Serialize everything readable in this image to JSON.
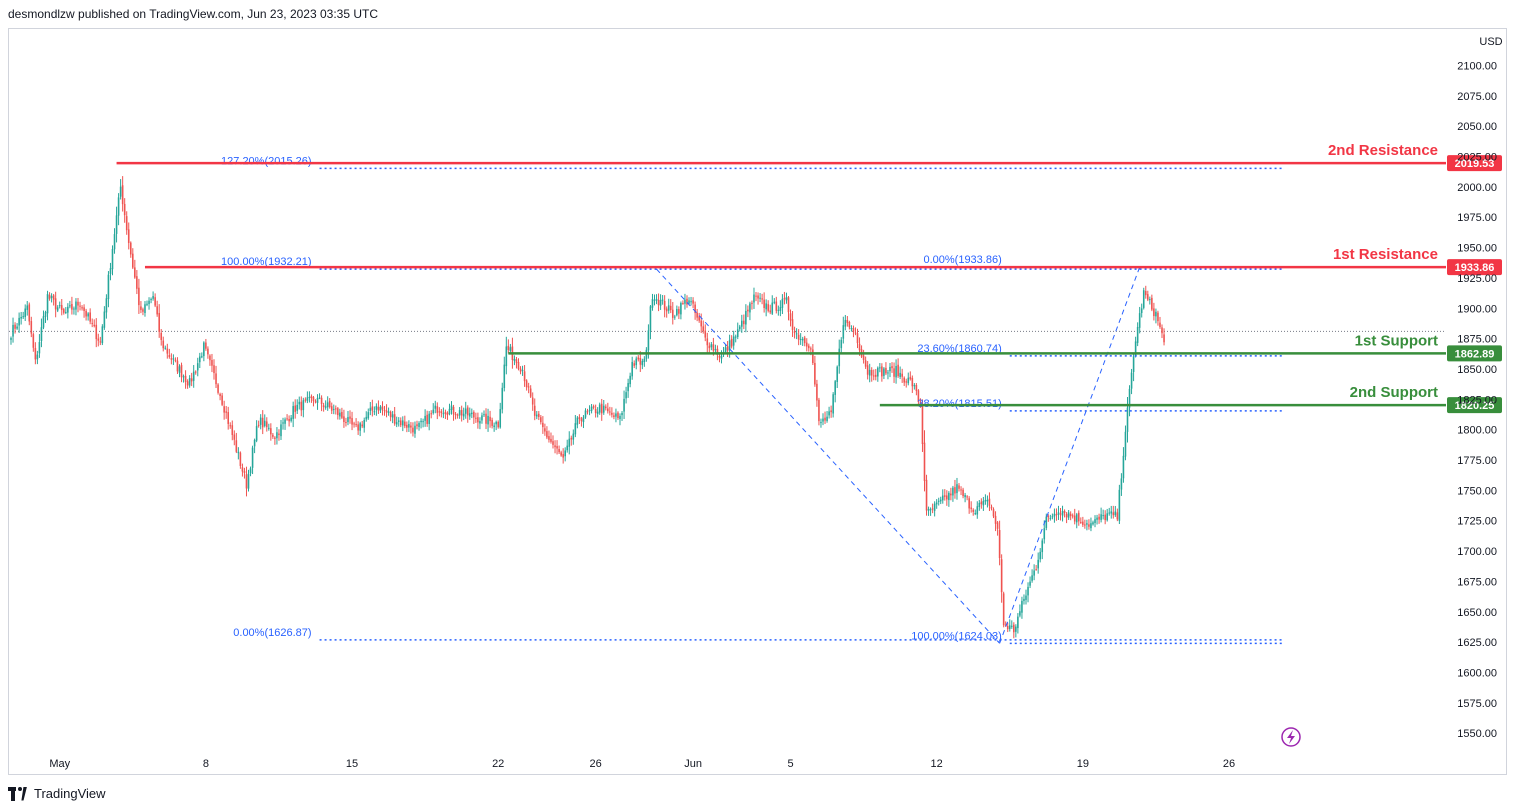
{
  "header": {
    "published": "desmondlzw published on TradingView.com, Jun 23, 2023 03:35 UTC"
  },
  "footer": {
    "brand": "TradingView"
  },
  "chart_data": {
    "type": "candlestick",
    "currency_label": "USD",
    "ylim": [
      1537,
      2130
    ],
    "y_ticks": [
      2100,
      2075,
      2050,
      2025,
      2000,
      1975,
      1950,
      1925,
      1900,
      1875,
      1850,
      1825,
      1800,
      1775,
      1750,
      1725,
      1700,
      1675,
      1650,
      1625,
      1600,
      1575,
      1550
    ],
    "x_ticks": [
      {
        "label": "May",
        "bar": 24
      },
      {
        "label": "8",
        "bar": 96
      },
      {
        "label": "15",
        "bar": 168
      },
      {
        "label": "22",
        "bar": 240
      },
      {
        "label": "26",
        "bar": 288
      },
      {
        "label": "Jun",
        "bar": 336
      },
      {
        "label": "5",
        "bar": 384
      },
      {
        "label": "12",
        "bar": 456
      },
      {
        "label": "19",
        "bar": 528
      },
      {
        "label": "26",
        "bar": 600
      }
    ],
    "bars_total": 640,
    "current_price": 1881,
    "colors": {
      "up": "#26a69a",
      "down": "#ef5350",
      "resistance": "#f23645",
      "support": "#388e3c",
      "fib": "#2962ff"
    },
    "levels": [
      {
        "name": "2nd Resistance",
        "price": 2019.53,
        "label": "2019.53",
        "kind": "resistance",
        "from_bar": 52
      },
      {
        "name": "1st Resistance",
        "price": 1933.86,
        "label": "1933.86",
        "kind": "resistance",
        "from_bar": 66
      },
      {
        "name": "1st Support",
        "price": 1862.89,
        "label": "1862.89",
        "kind": "support",
        "from_bar": 245
      },
      {
        "name": "2nd Support",
        "price": 1820.25,
        "label": "1820.25",
        "kind": "support",
        "from_bar": 428
      }
    ],
    "fib_lines": [
      {
        "label": "127.20%(2015.26)",
        "price": 2015.26,
        "from_bar": 152,
        "to_bar": 626
      },
      {
        "label": "100.00%(1932.21)",
        "price": 1932.21,
        "from_bar": 152,
        "to_bar": 626
      },
      {
        "label": "0.00%(1626.87)",
        "price": 1626.87,
        "from_bar": 152,
        "to_bar": 626
      },
      {
        "label": "0.00%(1933.86)",
        "price": 1933.86,
        "from_bar": 492,
        "to_bar": 626
      },
      {
        "label": "23.60%(1860.74)",
        "price": 1860.74,
        "from_bar": 492,
        "to_bar": 626
      },
      {
        "label": "38.20%(1815.51)",
        "price": 1815.51,
        "from_bar": 492,
        "to_bar": 626
      },
      {
        "label": "100.00%(1624.03)",
        "price": 1624.03,
        "from_bar": 492,
        "to_bar": 626
      }
    ],
    "trend_lines": [
      {
        "from_bar": 318,
        "from_price": 1932.21,
        "to_bar": 487,
        "to_price": 1624.03
      },
      {
        "from_bar": 487,
        "from_price": 1624.03,
        "to_bar": 556,
        "to_price": 1933.86
      }
    ],
    "anchors": [
      {
        "bar": 0,
        "price": 1880
      },
      {
        "bar": 8,
        "price": 1900
      },
      {
        "bar": 12,
        "price": 1855
      },
      {
        "bar": 18,
        "price": 1910
      },
      {
        "bar": 26,
        "price": 1895
      },
      {
        "bar": 34,
        "price": 1905
      },
      {
        "bar": 44,
        "price": 1872
      },
      {
        "bar": 50,
        "price": 1950
      },
      {
        "bar": 54,
        "price": 2000
      },
      {
        "bar": 58,
        "price": 1955
      },
      {
        "bar": 64,
        "price": 1895
      },
      {
        "bar": 70,
        "price": 1910
      },
      {
        "bar": 74,
        "price": 1872
      },
      {
        "bar": 80,
        "price": 1856
      },
      {
        "bar": 88,
        "price": 1838
      },
      {
        "bar": 95,
        "price": 1868
      },
      {
        "bar": 103,
        "price": 1830
      },
      {
        "bar": 110,
        "price": 1790
      },
      {
        "bar": 116,
        "price": 1755
      },
      {
        "bar": 122,
        "price": 1808
      },
      {
        "bar": 130,
        "price": 1795
      },
      {
        "bar": 140,
        "price": 1818
      },
      {
        "bar": 150,
        "price": 1825
      },
      {
        "bar": 160,
        "price": 1815
      },
      {
        "bar": 170,
        "price": 1800
      },
      {
        "bar": 180,
        "price": 1820
      },
      {
        "bar": 190,
        "price": 1808
      },
      {
        "bar": 200,
        "price": 1800
      },
      {
        "bar": 210,
        "price": 1818
      },
      {
        "bar": 220,
        "price": 1815
      },
      {
        "bar": 230,
        "price": 1810
      },
      {
        "bar": 240,
        "price": 1805
      },
      {
        "bar": 244,
        "price": 1868
      },
      {
        "bar": 252,
        "price": 1850
      },
      {
        "bar": 258,
        "price": 1812
      },
      {
        "bar": 264,
        "price": 1795
      },
      {
        "bar": 272,
        "price": 1775
      },
      {
        "bar": 280,
        "price": 1810
      },
      {
        "bar": 290,
        "price": 1818
      },
      {
        "bar": 300,
        "price": 1808
      },
      {
        "bar": 306,
        "price": 1855
      },
      {
        "bar": 312,
        "price": 1855
      },
      {
        "bar": 316,
        "price": 1912
      },
      {
        "bar": 326,
        "price": 1895
      },
      {
        "bar": 334,
        "price": 1908
      },
      {
        "bar": 342,
        "price": 1875
      },
      {
        "bar": 350,
        "price": 1860
      },
      {
        "bar": 358,
        "price": 1880
      },
      {
        "bar": 366,
        "price": 1908
      },
      {
        "bar": 374,
        "price": 1900
      },
      {
        "bar": 382,
        "price": 1905
      },
      {
        "bar": 386,
        "price": 1880
      },
      {
        "bar": 394,
        "price": 1870
      },
      {
        "bar": 398,
        "price": 1805
      },
      {
        "bar": 404,
        "price": 1812
      },
      {
        "bar": 410,
        "price": 1890
      },
      {
        "bar": 416,
        "price": 1880
      },
      {
        "bar": 422,
        "price": 1848
      },
      {
        "bar": 428,
        "price": 1848
      },
      {
        "bar": 436,
        "price": 1848
      },
      {
        "bar": 444,
        "price": 1838
      },
      {
        "bar": 448,
        "price": 1820
      },
      {
        "bar": 451,
        "price": 1730
      },
      {
        "bar": 458,
        "price": 1740
      },
      {
        "bar": 466,
        "price": 1752
      },
      {
        "bar": 474,
        "price": 1735
      },
      {
        "bar": 482,
        "price": 1740
      },
      {
        "bar": 486,
        "price": 1718
      },
      {
        "bar": 489,
        "price": 1640
      },
      {
        "bar": 494,
        "price": 1635
      },
      {
        "bar": 500,
        "price": 1665
      },
      {
        "bar": 505,
        "price": 1688
      },
      {
        "bar": 510,
        "price": 1725
      },
      {
        "bar": 516,
        "price": 1735
      },
      {
        "bar": 524,
        "price": 1728
      },
      {
        "bar": 532,
        "price": 1722
      },
      {
        "bar": 540,
        "price": 1730
      },
      {
        "bar": 545,
        "price": 1728
      },
      {
        "bar": 549,
        "price": 1800
      },
      {
        "bar": 554,
        "price": 1875
      },
      {
        "bar": 558,
        "price": 1912
      },
      {
        "bar": 564,
        "price": 1895
      },
      {
        "bar": 568,
        "price": 1872
      }
    ]
  }
}
